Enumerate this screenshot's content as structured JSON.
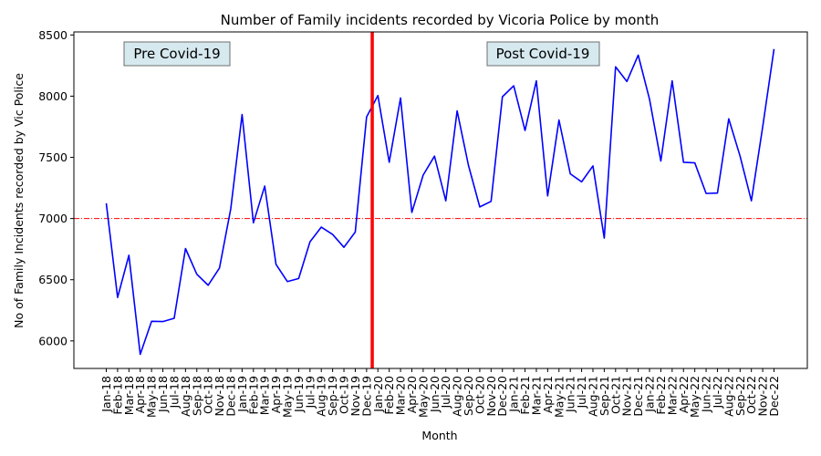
{
  "chart_data": {
    "type": "line",
    "title": "Number of Family incidents recorded by Vicoria Police by month",
    "xlabel": "Month",
    "ylabel": "No of Family Incidents recorded by Vic Police",
    "ylim": [
      5775,
      8525
    ],
    "yticks": [
      6000,
      6500,
      7000,
      7500,
      8000,
      8500
    ],
    "categories": [
      "Jan-18",
      "Feb-18",
      "Mar-18",
      "Apr-18",
      "May-18",
      "Jun-18",
      "Jul-18",
      "Aug-18",
      "Sep-18",
      "Oct-18",
      "Nov-18",
      "Dec-18",
      "Jan-19",
      "Feb-19",
      "Mar-19",
      "Apr-19",
      "May-19",
      "Jun-19",
      "Jul-19",
      "Aug-19",
      "Sep-19",
      "Oct-19",
      "Nov-19",
      "Dec-19",
      "Jan-20",
      "Feb-20",
      "Mar-20",
      "Apr-20",
      "May-20",
      "Jun-20",
      "Jul-20",
      "Aug-20",
      "Sep-20",
      "Oct-20",
      "Nov-20",
      "Dec-20",
      "Jan-21",
      "Feb-21",
      "Mar-21",
      "Apr-21",
      "May-21",
      "Jun-21",
      "Jul-21",
      "Aug-21",
      "Sep-21",
      "Oct-21",
      "Nov-21",
      "Dec-21",
      "Jan-22",
      "Feb-22",
      "Mar-22",
      "Apr-22",
      "May-22",
      "Jun-22",
      "Jul-22",
      "Aug-22",
      "Sep-22",
      "Oct-22",
      "Nov-22",
      "Dec-22"
    ],
    "series": [
      {
        "color": "#0000ff",
        "values": [
          7125,
          6355,
          6700,
          5890,
          6160,
          6158,
          6185,
          6755,
          6545,
          6455,
          6595,
          7080,
          7850,
          6965,
          7265,
          6625,
          6485,
          6510,
          6810,
          6930,
          6870,
          6765,
          6890,
          7830,
          8005,
          7460,
          7985,
          7050,
          7355,
          7510,
          7145,
          7880,
          7435,
          7095,
          7140,
          7995,
          8085,
          7720,
          8125,
          7185,
          7805,
          7365,
          7300,
          7430,
          6840,
          8240,
          8120,
          8335,
          7975,
          7470,
          8125,
          7460,
          7455,
          7205,
          7208,
          7815,
          7510,
          7145,
          7750,
          8385
        ]
      }
    ],
    "reference_lines": [
      {
        "orientation": "horizontal",
        "value": 7000,
        "style": "dash-dot",
        "color": "#ff0000"
      },
      {
        "orientation": "vertical",
        "at_category": "Dec-19",
        "style": "solid",
        "color": "#ff0000"
      }
    ],
    "annotations": [
      {
        "text": "Pre Covid-19",
        "anchor": "upper-left"
      },
      {
        "text": "Post Covid-19",
        "anchor": "upper-center-right"
      }
    ],
    "grid": false,
    "legend": "none"
  }
}
